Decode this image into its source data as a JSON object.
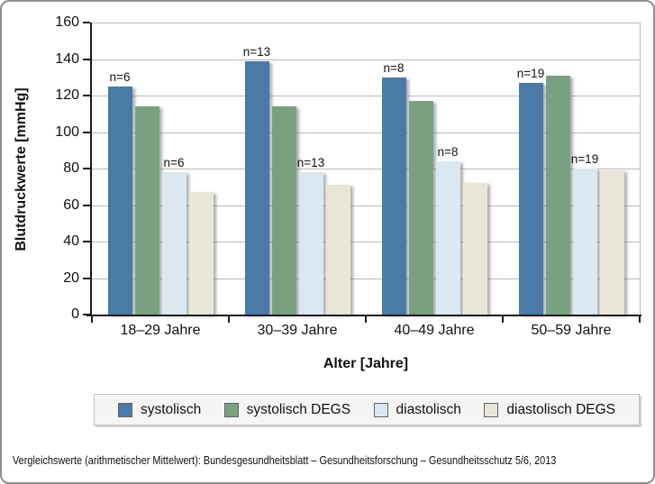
{
  "figure": {
    "caption": "Vergleichswerte (arithmetischer Mittelwert): Bundesgesundheitsblatt – Gesundheitsforschung – Gesundheitsschutz 5/6, 2013"
  },
  "chart_data": {
    "type": "bar",
    "title": "",
    "categories": [
      "18–29 Jahre",
      "30–39 Jahre",
      "40–49 Jahre",
      "50–59 Jahre"
    ],
    "series": [
      {
        "name": "systolisch",
        "color": "#4a7aa6",
        "values": [
          125,
          139,
          130,
          127
        ]
      },
      {
        "name": "systolisch DEGS",
        "color": "#79a17f",
        "values": [
          114,
          114,
          117,
          131
        ]
      },
      {
        "name": "diastolisch",
        "color": "#dbe8f2",
        "values": [
          78,
          78,
          84,
          80
        ]
      },
      {
        "name": "diastolisch DEGS",
        "color": "#eae6d7",
        "values": [
          67,
          71,
          72,
          79
        ]
      }
    ],
    "n_per_category": [
      6,
      13,
      8,
      19
    ],
    "n_label_prefix": "n=",
    "n_label_above_series": [
      0,
      2
    ],
    "ylabel": "Blutdruckwerte [mmHg]",
    "xlabel": "Alter [Jahre]",
    "ylim": [
      0,
      160
    ],
    "ytick_step": 20,
    "grid": true,
    "legend_position": "bottom"
  }
}
